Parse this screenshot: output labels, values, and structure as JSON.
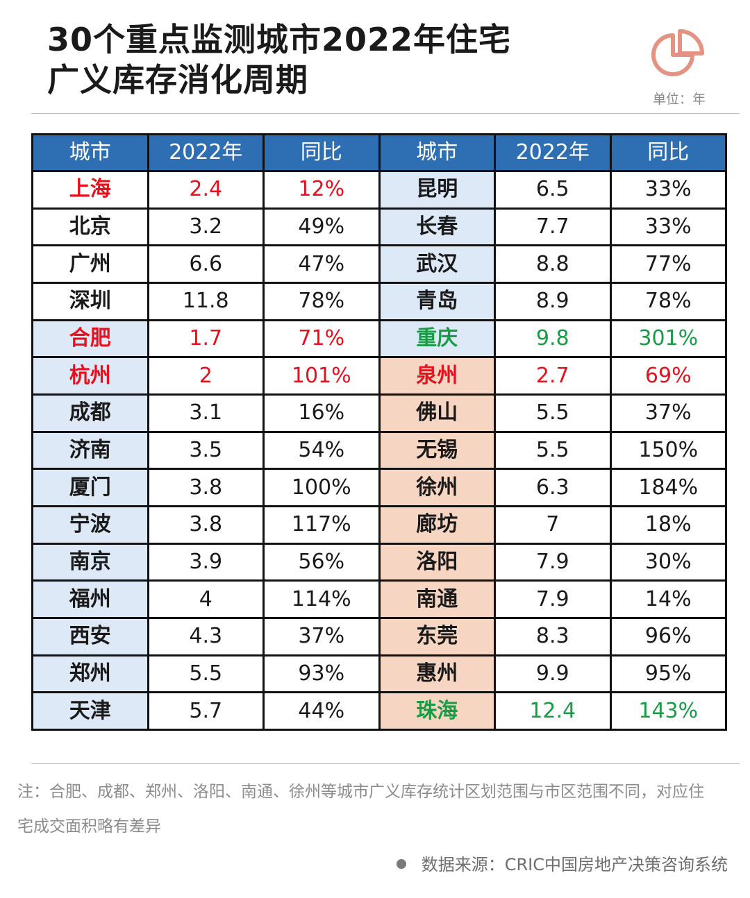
{
  "title": {
    "line1": "30个重点监测城市2022年住宅",
    "line2": "广义库存消化周期"
  },
  "unit_label": "单位：年",
  "icon": "pie-chart-icon",
  "colors": {
    "header_blue": "#2e6fb3",
    "highlight_blue": "#dde9f6",
    "highlight_orange": "#f7d5c3",
    "red": "#e8101c",
    "green": "#1a9b45"
  },
  "chart_data": {
    "type": "table",
    "columns": [
      "城市",
      "2022年",
      "同比",
      "城市",
      "2022年",
      "同比"
    ],
    "left": [
      {
        "city": "上海",
        "value": "2.4",
        "yoy": "12%",
        "color": "red",
        "hl": ""
      },
      {
        "city": "北京",
        "value": "3.2",
        "yoy": "49%",
        "color": "",
        "hl": ""
      },
      {
        "city": "广州",
        "value": "6.6",
        "yoy": "47%",
        "color": "",
        "hl": ""
      },
      {
        "city": "深圳",
        "value": "11.8",
        "yoy": "78%",
        "color": "",
        "hl": ""
      },
      {
        "city": "合肥",
        "value": "1.7",
        "yoy": "71%",
        "color": "red",
        "hl": "hl"
      },
      {
        "city": "杭州",
        "value": "2",
        "yoy": "101%",
        "color": "red",
        "hl": "hl"
      },
      {
        "city": "成都",
        "value": "3.1",
        "yoy": "16%",
        "color": "",
        "hl": "hl"
      },
      {
        "city": "济南",
        "value": "3.5",
        "yoy": "54%",
        "color": "",
        "hl": "hl"
      },
      {
        "city": "厦门",
        "value": "3.8",
        "yoy": "100%",
        "color": "",
        "hl": "hl"
      },
      {
        "city": "宁波",
        "value": "3.8",
        "yoy": "117%",
        "color": "",
        "hl": "hl"
      },
      {
        "city": "南京",
        "value": "3.9",
        "yoy": "56%",
        "color": "",
        "hl": "hl"
      },
      {
        "city": "福州",
        "value": "4",
        "yoy": "114%",
        "color": "",
        "hl": "hl"
      },
      {
        "city": "西安",
        "value": "4.3",
        "yoy": "37%",
        "color": "",
        "hl": "hl"
      },
      {
        "city": "郑州",
        "value": "5.5",
        "yoy": "93%",
        "color": "",
        "hl": "hl"
      },
      {
        "city": "天津",
        "value": "5.7",
        "yoy": "44%",
        "color": "",
        "hl": "hl"
      }
    ],
    "right": [
      {
        "city": "昆明",
        "value": "6.5",
        "yoy": "33%",
        "color": "",
        "hl": "hlb"
      },
      {
        "city": "长春",
        "value": "7.7",
        "yoy": "33%",
        "color": "",
        "hl": "hlb"
      },
      {
        "city": "武汉",
        "value": "8.8",
        "yoy": "77%",
        "color": "",
        "hl": "hlb"
      },
      {
        "city": "青岛",
        "value": "8.9",
        "yoy": "78%",
        "color": "",
        "hl": "hlb"
      },
      {
        "city": "重庆",
        "value": "9.8",
        "yoy": "301%",
        "color": "green",
        "hl": "hlb"
      },
      {
        "city": "泉州",
        "value": "2.7",
        "yoy": "69%",
        "color": "red",
        "hl": "hl"
      },
      {
        "city": "佛山",
        "value": "5.5",
        "yoy": "37%",
        "color": "",
        "hl": "hl"
      },
      {
        "city": "无锡",
        "value": "5.5",
        "yoy": "150%",
        "color": "",
        "hl": "hl"
      },
      {
        "city": "徐州",
        "value": "6.3",
        "yoy": "184%",
        "color": "",
        "hl": "hl"
      },
      {
        "city": "廊坊",
        "value": "7",
        "yoy": "18%",
        "color": "",
        "hl": "hl"
      },
      {
        "city": "洛阳",
        "value": "7.9",
        "yoy": "30%",
        "color": "",
        "hl": "hl"
      },
      {
        "city": "南通",
        "value": "7.9",
        "yoy": "14%",
        "color": "",
        "hl": "hl"
      },
      {
        "city": "东莞",
        "value": "8.3",
        "yoy": "96%",
        "color": "",
        "hl": "hl"
      },
      {
        "city": "惠州",
        "value": "9.9",
        "yoy": "95%",
        "color": "",
        "hl": "hl"
      },
      {
        "city": "珠海",
        "value": "12.4",
        "yoy": "143%",
        "color": "green",
        "hl": "hl"
      }
    ]
  },
  "note": "注：合肥、成都、郑州、洛阳、南通、徐州等城市广义库存统计区划范围与市区范围不同，对应住宅成交面积略有差异",
  "source": "数据来源：CRIC中国房地产决策咨询系统"
}
